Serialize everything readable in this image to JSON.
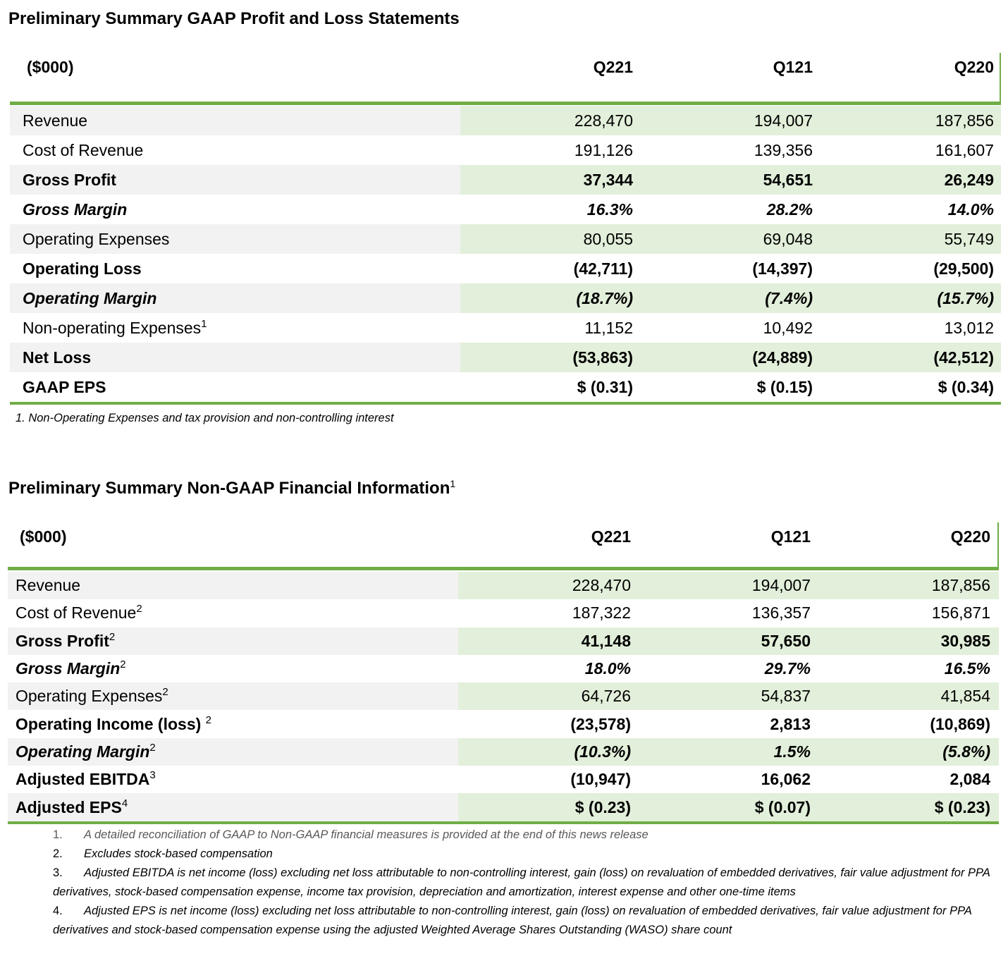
{
  "tables": [
    {
      "title": "Preliminary Summary GAAP Profit and Loss Statements",
      "header": [
        "($000)",
        "Q221",
        "Q121",
        "Q220"
      ],
      "rows": [
        {
          "label": "Revenue",
          "style": "normal",
          "cells": [
            "228,470",
            "194,007",
            "187,856"
          ]
        },
        {
          "label": "Cost of Revenue",
          "style": "normal",
          "cells": [
            "191,126",
            "139,356",
            "161,607"
          ]
        },
        {
          "label": "Gross Profit",
          "style": "bold",
          "cells": [
            "37,344",
            "54,651",
            "26,249"
          ]
        },
        {
          "label": "Gross Margin",
          "style": "bold-italic",
          "cells": [
            "16.3%",
            "28.2%",
            "14.0%"
          ]
        },
        {
          "label": "Operating Expenses",
          "style": "normal",
          "cells": [
            "80,055",
            "69,048",
            "55,749"
          ]
        },
        {
          "label": "Operating Loss",
          "style": "bold",
          "cells": [
            "(42,711)",
            "(14,397)",
            "(29,500)"
          ]
        },
        {
          "label": "Operating Margin",
          "style": "bold-italic",
          "cells": [
            "(18.7%)",
            "(7.4%)",
            "(15.7%)"
          ]
        },
        {
          "label": "Non-operating Expenses",
          "sup": "1",
          "style": "normal",
          "cells": [
            "11,152",
            "10,492",
            "13,012"
          ]
        },
        {
          "label": "Net Loss",
          "style": "bold",
          "cells": [
            "(53,863)",
            "(24,889)",
            "(42,512)"
          ]
        },
        {
          "label": "GAAP EPS",
          "style": "bold",
          "cells": [
            "$ (0.31)",
            "$ (0.15)",
            "$ (0.34)"
          ]
        }
      ],
      "footnotes": [
        {
          "text": "1. Non-Operating Expenses and tax provision and non-controlling interest"
        }
      ]
    },
    {
      "title": "Preliminary Summary Non-GAAP Financial Information",
      "title_sup": "1",
      "header": [
        "($000)",
        "Q221",
        "Q121",
        "Q220"
      ],
      "rows": [
        {
          "label": "Revenue",
          "style": "normal",
          "cells": [
            "228,470",
            "194,007",
            "187,856"
          ]
        },
        {
          "label": "Cost of Revenue",
          "sup": "2",
          "style": "normal",
          "cells": [
            "187,322",
            "136,357",
            "156,871"
          ]
        },
        {
          "label": "Gross Profit",
          "sup": "2",
          "style": "bold",
          "cells": [
            "41,148",
            "57,650",
            "30,985"
          ]
        },
        {
          "label": "Gross Margin",
          "sup": "2",
          "style": "bold-italic",
          "cells": [
            "18.0%",
            "29.7%",
            "16.5%"
          ]
        },
        {
          "label": "Operating Expenses",
          "sup": "2",
          "style": "normal",
          "cells": [
            "64,726",
            "54,837",
            "41,854"
          ]
        },
        {
          "label": "Operating Income (loss) ",
          "sup": "2",
          "style": "bold",
          "cells": [
            "(23,578)",
            "2,813",
            "(10,869)"
          ]
        },
        {
          "label": "Operating Margin",
          "sup": "2",
          "style": "bold-italic",
          "cells": [
            "(10.3%)",
            "1.5%",
            "(5.8%)"
          ]
        },
        {
          "label": "Adjusted EBITDA",
          "sup": "3",
          "style": "bold",
          "cells": [
            "(10,947)",
            "16,062",
            "2,084"
          ]
        },
        {
          "label": "Adjusted EPS",
          "sup": "4",
          "style": "bold",
          "cells": [
            "$ (0.23)",
            "$ (0.07)",
            "$ (0.23)"
          ]
        }
      ],
      "footnotes": [
        {
          "number": "1.",
          "text": "A detailed reconciliation of GAAP to Non-GAAP financial measures is provided at the end of this news release"
        },
        {
          "number": "2.",
          "text": "Excludes stock-based compensation"
        },
        {
          "number": "3.",
          "text": "Adjusted EBITDA is net income (loss) excluding net loss attributable to non-controlling interest, gain (loss) on revaluation of embedded derivatives, fair value adjustment for PPA derivatives, stock-based compensation expense, income tax provision, depreciation and amortization, interest expense and other one-time items"
        },
        {
          "number": "4.",
          "text": "Adjusted EPS is net income (loss) excluding net loss attributable to non-controlling interest, gain (loss) on revaluation of embedded derivatives, fair value adjustment for PPA derivatives and stock-based compensation expense using the adjusted Weighted Average Shares Outstanding (WASO) share count"
        }
      ]
    }
  ]
}
